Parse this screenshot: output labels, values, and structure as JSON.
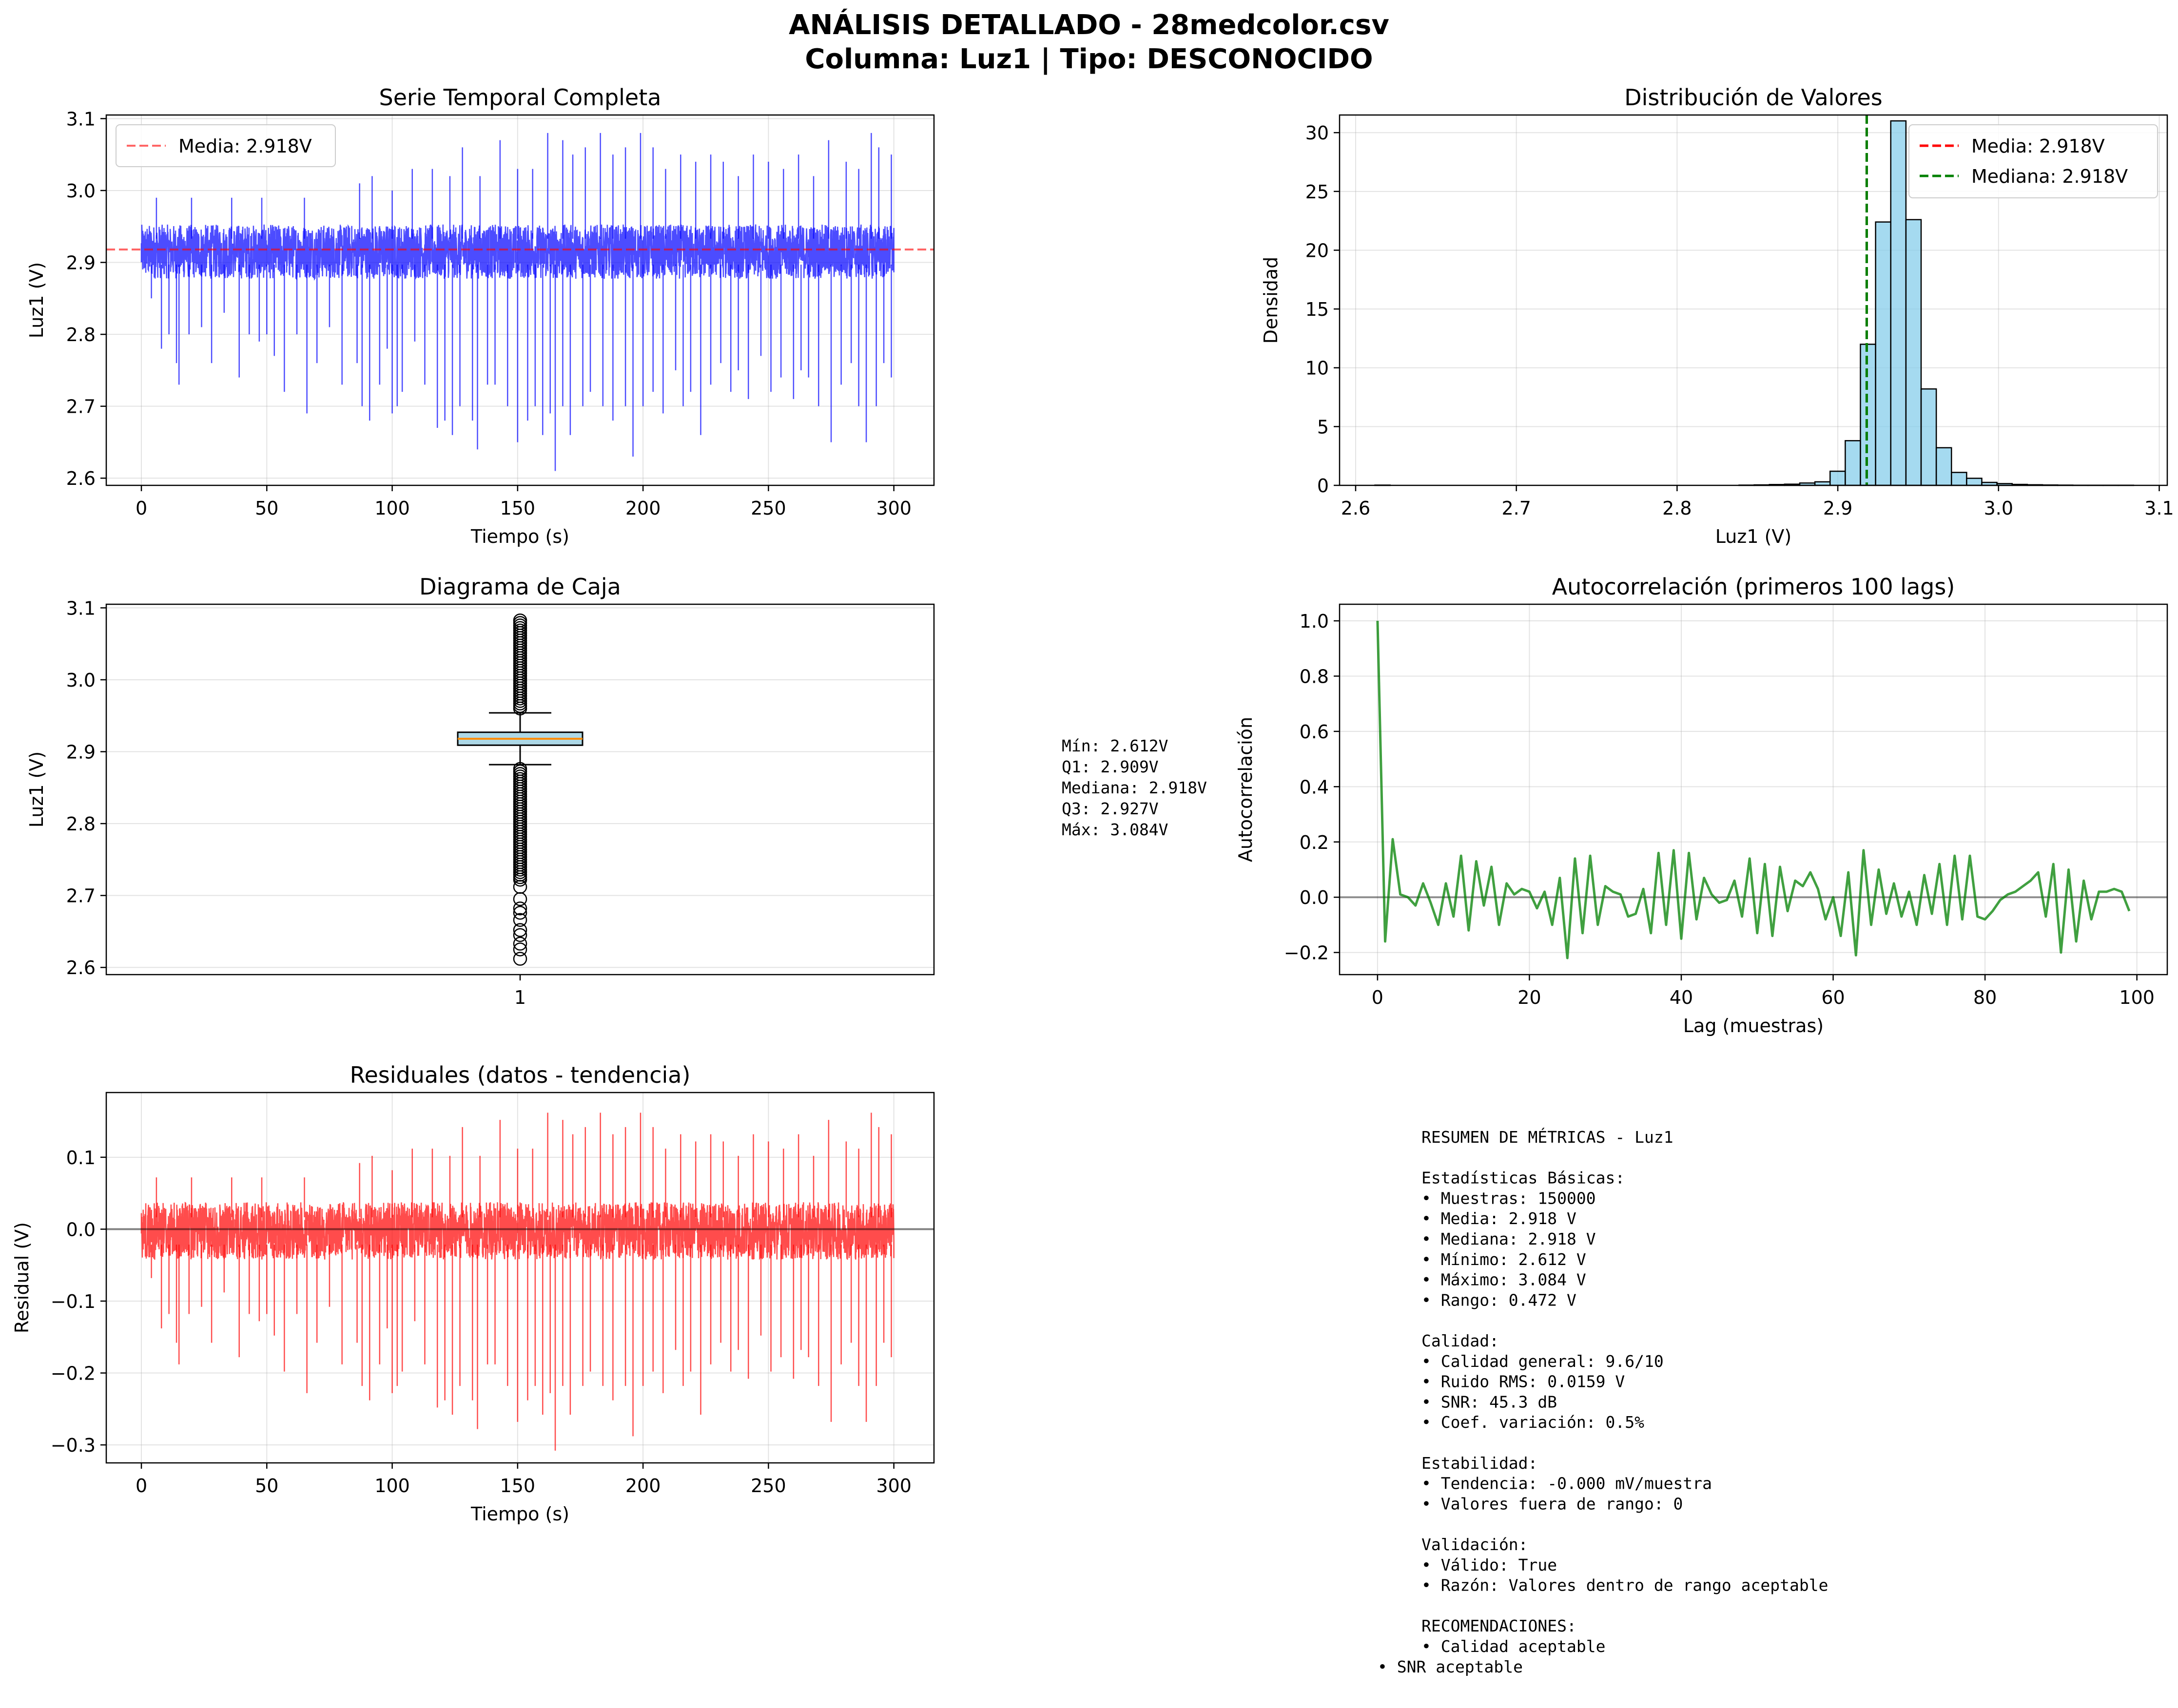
{
  "figure": {
    "title_line1": "ANÁLISIS DETALLADO - 28medcolor.csv",
    "title_line2": "Columna: Luz1 | Tipo: DESCONOCIDO"
  },
  "chart_data": [
    {
      "id": "timeseries",
      "type": "line",
      "title": "Serie Temporal Completa",
      "xlabel": "Tiempo (s)",
      "ylabel": "Luz1 (V)",
      "xlim": [
        -14,
        316
      ],
      "ylim": [
        2.59,
        3.105
      ],
      "xticks": [
        0,
        50,
        100,
        150,
        200,
        250,
        300
      ],
      "xtick_labels": [
        "0",
        "50",
        "100",
        "150",
        "200",
        "250",
        "300"
      ],
      "yticks": [
        2.6,
        2.7,
        2.8,
        2.9,
        3.0,
        3.1
      ],
      "ytick_labels": [
        "2.6",
        "2.7",
        "2.8",
        "2.9",
        "3.0",
        "3.1"
      ],
      "series_color": "#0000ff",
      "band": [
        2.87,
        2.96
      ],
      "spikes_down": [
        [
          4,
          2.85
        ],
        [
          8,
          2.78
        ],
        [
          11,
          2.8
        ],
        [
          14,
          2.76
        ],
        [
          15,
          2.73
        ],
        [
          19,
          2.8
        ],
        [
          24,
          2.81
        ],
        [
          28,
          2.76
        ],
        [
          33,
          2.83
        ],
        [
          39,
          2.74
        ],
        [
          43,
          2.8
        ],
        [
          47,
          2.79
        ],
        [
          50,
          2.8
        ],
        [
          53,
          2.77
        ],
        [
          57,
          2.72
        ],
        [
          62,
          2.8
        ],
        [
          66,
          2.69
        ],
        [
          70,
          2.76
        ],
        [
          75,
          2.81
        ],
        [
          80,
          2.73
        ],
        [
          86,
          2.76
        ],
        [
          88,
          2.7
        ],
        [
          91,
          2.68
        ],
        [
          95,
          2.73
        ],
        [
          98,
          2.78
        ],
        [
          100,
          2.69
        ],
        [
          102,
          2.7
        ],
        [
          104,
          2.72
        ],
        [
          109,
          2.79
        ],
        [
          113,
          2.73
        ],
        [
          118,
          2.67
        ],
        [
          121,
          2.68
        ],
        [
          124,
          2.66
        ],
        [
          127,
          2.7
        ],
        [
          132,
          2.68
        ],
        [
          134,
          2.64
        ],
        [
          138,
          2.73
        ],
        [
          141,
          2.73
        ],
        [
          146,
          2.7
        ],
        [
          150,
          2.65
        ],
        [
          154,
          2.68
        ],
        [
          157,
          2.7
        ],
        [
          160,
          2.66
        ],
        [
          163,
          2.69
        ],
        [
          165,
          2.61
        ],
        [
          168,
          2.7
        ],
        [
          171,
          2.66
        ],
        [
          176,
          2.7
        ],
        [
          179,
          2.72
        ],
        [
          184,
          2.7
        ],
        [
          188,
          2.68
        ],
        [
          193,
          2.7
        ],
        [
          196,
          2.63
        ],
        [
          200,
          2.7
        ],
        [
          204,
          2.72
        ],
        [
          208,
          2.69
        ],
        [
          213,
          2.75
        ],
        [
          216,
          2.7
        ],
        [
          219,
          2.72
        ],
        [
          223,
          2.66
        ],
        [
          227,
          2.73
        ],
        [
          231,
          2.76
        ],
        [
          235,
          2.72
        ],
        [
          238,
          2.75
        ],
        [
          242,
          2.71
        ],
        [
          247,
          2.77
        ],
        [
          251,
          2.72
        ],
        [
          255,
          2.74
        ],
        [
          260,
          2.71
        ],
        [
          263,
          2.75
        ],
        [
          266,
          2.74
        ],
        [
          270,
          2.7
        ],
        [
          275,
          2.65
        ],
        [
          279,
          2.73
        ],
        [
          283,
          2.76
        ],
        [
          286,
          2.7
        ],
        [
          289,
          2.65
        ],
        [
          293,
          2.7
        ],
        [
          296,
          2.76
        ],
        [
          299,
          2.74
        ]
      ],
      "spikes_up": [
        [
          6,
          2.99
        ],
        [
          20,
          2.99
        ],
        [
          36,
          2.99
        ],
        [
          48,
          2.99
        ],
        [
          65,
          2.99
        ],
        [
          87,
          3.01
        ],
        [
          92,
          3.02
        ],
        [
          100,
          3.0
        ],
        [
          108,
          3.03
        ],
        [
          116,
          3.03
        ],
        [
          123,
          3.02
        ],
        [
          128,
          3.06
        ],
        [
          135,
          3.02
        ],
        [
          143,
          3.07
        ],
        [
          150,
          3.03
        ],
        [
          156,
          3.03
        ],
        [
          162,
          3.08
        ],
        [
          168,
          3.07
        ],
        [
          172,
          3.05
        ],
        [
          177,
          3.06
        ],
        [
          183,
          3.08
        ],
        [
          188,
          3.05
        ],
        [
          193,
          3.06
        ],
        [
          199,
          3.08
        ],
        [
          204,
          3.06
        ],
        [
          209,
          3.03
        ],
        [
          215,
          3.05
        ],
        [
          221,
          3.04
        ],
        [
          227,
          3.05
        ],
        [
          232,
          3.04
        ],
        [
          238,
          3.02
        ],
        [
          244,
          3.05
        ],
        [
          250,
          3.04
        ],
        [
          256,
          3.03
        ],
        [
          262,
          3.05
        ],
        [
          268,
          3.02
        ],
        [
          274,
          3.07
        ],
        [
          281,
          3.04
        ],
        [
          286,
          3.03
        ],
        [
          291,
          3.08
        ],
        [
          294,
          3.06
        ],
        [
          299,
          3.05
        ]
      ],
      "reference_line": {
        "value": 2.918,
        "label": "Media: 2.918V",
        "color": "#ff0000"
      },
      "legend": "upper left"
    },
    {
      "id": "histogram",
      "type": "bar",
      "title": "Distribución de Valores",
      "xlabel": "Luz1 (V)",
      "ylabel": "Densidad",
      "xlim": [
        2.59,
        3.105
      ],
      "ylim": [
        0,
        31.5
      ],
      "xticks": [
        2.6,
        2.7,
        2.8,
        2.9,
        3.0,
        3.1
      ],
      "xtick_labels": [
        "2.6",
        "2.7",
        "2.8",
        "2.9",
        "3.0",
        "3.1"
      ],
      "yticks": [
        0,
        5,
        10,
        15,
        20,
        25,
        30
      ],
      "ytick_labels": [
        "0",
        "5",
        "10",
        "15",
        "20",
        "25",
        "30"
      ],
      "bin_start": 2.612,
      "bin_width": 0.00944,
      "values": [
        0.02,
        0,
        0,
        0,
        0,
        0,
        0,
        0,
        0,
        0,
        0,
        0,
        0,
        0,
        0,
        0,
        0,
        0,
        0,
        0,
        0,
        0,
        0,
        0,
        0.02,
        0.04,
        0.07,
        0.1,
        0.2,
        0.3,
        1.2,
        3.8,
        12.0,
        22.4,
        31.0,
        22.6,
        8.2,
        3.2,
        1.1,
        0.6,
        0.25,
        0.15,
        0.08,
        0.05,
        0.03,
        0.02,
        0.01,
        0.01,
        0.01,
        0.01
      ],
      "bar_color": "#87ceeb",
      "reference_lines": [
        {
          "value": 2.918,
          "label": "Media: 2.918V",
          "color": "#ff0000"
        },
        {
          "value": 2.918,
          "label": "Mediana: 2.918V",
          "color": "#008000"
        }
      ],
      "legend": "upper right"
    },
    {
      "id": "boxplot",
      "type": "box",
      "title": "Diagrama de Caja",
      "xlabel": "",
      "ylabel": "Luz1 (V)",
      "ylim": [
        2.59,
        3.105
      ],
      "yticks": [
        2.6,
        2.7,
        2.8,
        2.9,
        3.0,
        3.1
      ],
      "ytick_labels": [
        "2.6",
        "2.7",
        "2.8",
        "2.9",
        "3.0",
        "3.1"
      ],
      "category": "1",
      "min": 2.612,
      "q1": 2.909,
      "median": 2.918,
      "q3": 2.927,
      "max": 3.084,
      "whisker_low": 2.882,
      "whisker_high": 2.954,
      "median_color": "#ff8c00",
      "box_fill": "#add8e6",
      "stats_lines": [
        "Mín: 2.612V",
        "Q1: 2.909V",
        "Mediana: 2.918V",
        "Q3: 2.927V",
        "Máx: 3.084V"
      ]
    },
    {
      "id": "autocorr",
      "type": "line",
      "title": "Autocorrelación (primeros 100 lags)",
      "xlabel": "Lag (muestras)",
      "ylabel": "Autocorrelación",
      "xlim": [
        -5,
        104
      ],
      "ylim": [
        -0.28,
        1.06
      ],
      "xticks": [
        0,
        20,
        40,
        60,
        80,
        100
      ],
      "xtick_labels": [
        "0",
        "20",
        "40",
        "60",
        "80",
        "100"
      ],
      "yticks": [
        -0.2,
        0.0,
        0.2,
        0.4,
        0.6,
        0.8,
        1.0
      ],
      "ytick_labels": [
        "−0.2",
        "0.0",
        "0.2",
        "0.4",
        "0.6",
        "0.8",
        "1.0"
      ],
      "series_color": "#008000",
      "zero_line": 0,
      "values": [
        1.0,
        -0.16,
        0.21,
        0.01,
        0.0,
        -0.03,
        0.05,
        -0.02,
        -0.1,
        0.05,
        -0.07,
        0.15,
        -0.12,
        0.13,
        -0.03,
        0.11,
        -0.1,
        0.05,
        0.01,
        0.03,
        0.02,
        -0.04,
        0.02,
        -0.1,
        0.07,
        -0.22,
        0.14,
        -0.13,
        0.15,
        -0.1,
        0.04,
        0.02,
        0.01,
        -0.07,
        -0.06,
        0.03,
        -0.13,
        0.16,
        -0.1,
        0.17,
        -0.15,
        0.16,
        -0.08,
        0.07,
        0.01,
        -0.02,
        -0.01,
        0.06,
        -0.07,
        0.14,
        -0.13,
        0.12,
        -0.14,
        0.11,
        -0.05,
        0.06,
        0.04,
        0.09,
        0.03,
        -0.08,
        0.0,
        -0.14,
        0.09,
        -0.21,
        0.17,
        -0.1,
        0.1,
        -0.06,
        0.05,
        -0.07,
        0.02,
        -0.1,
        0.08,
        -0.06,
        0.12,
        -0.1,
        0.15,
        -0.08,
        0.15,
        -0.07,
        -0.08,
        -0.05,
        -0.01,
        0.01,
        0.02,
        0.04,
        0.06,
        0.09,
        -0.07,
        0.12,
        -0.2,
        0.1,
        -0.16,
        0.06,
        -0.08,
        0.02,
        0.02,
        0.03,
        0.02,
        -0.05
      ]
    },
    {
      "id": "residuals",
      "type": "line",
      "title": "Residuales (datos - tendencia)",
      "xlabel": "Tiempo (s)",
      "ylabel": "Residual (V)",
      "xlim": [
        -14,
        316
      ],
      "ylim": [
        -0.325,
        0.19
      ],
      "xticks": [
        0,
        50,
        100,
        150,
        200,
        250,
        300
      ],
      "xtick_labels": [
        "0",
        "50",
        "100",
        "150",
        "200",
        "250",
        "300"
      ],
      "yticks": [
        -0.3,
        -0.2,
        -0.1,
        0.0,
        0.1
      ],
      "ytick_labels": [
        "−0.3",
        "−0.2",
        "−0.1",
        "0.0",
        "0.1"
      ],
      "series_color": "#ff0000",
      "band": [
        -0.05,
        0.045
      ],
      "zero_line": 0,
      "offset": 2.918
    }
  ],
  "summary": {
    "lines": [
      "RESUMEN DE MÉTRICAS - Luz1",
      "",
      "Estadísticas Básicas:",
      "• Muestras: 150000",
      "• Media: 2.918 V",
      "• Mediana: 2.918 V",
      "• Mínimo: 2.612 V",
      "• Máximo: 3.084 V",
      "• Rango: 0.472 V",
      "",
      "Calidad:",
      "• Calidad general: 9.6/10",
      "• Ruido RMS: 0.0159 V",
      "• SNR: 45.3 dB",
      "• Coef. variación: 0.5%",
      "",
      "Estabilidad:",
      "• Tendencia: -0.000 mV/muestra",
      "• Valores fuera de rango: 0",
      "",
      "Validación:",
      "• Válido: True",
      "• Razón: Valores dentro de rango aceptable",
      "",
      "RECOMENDACIONES:",
      "• Calidad aceptable"
    ],
    "last_line": "• SNR aceptable"
  }
}
